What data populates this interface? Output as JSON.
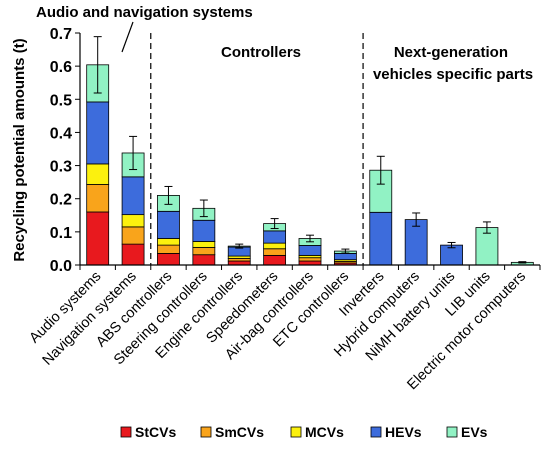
{
  "chart_data": {
    "type": "bar",
    "stacked": true,
    "ylabel": "Recycling potential amounts (t)",
    "ylim": [
      0,
      0.7
    ],
    "yticks": [
      "0.0",
      "0.1",
      "0.2",
      "0.3",
      "0.4",
      "0.5",
      "0.6",
      "0.7"
    ],
    "grid": false,
    "legend_position": "bottom",
    "categories": [
      "Audio systems",
      "Navigation systems",
      "ABS controllers",
      "Steering controllers",
      "Engine controllers",
      "Speedometers",
      "Air-bag controllers",
      "ETC controllers",
      "Inverters",
      "Hybrid computers",
      "NiMH battery units",
      "LIB units",
      "Electric motor computers"
    ],
    "series": [
      {
        "name": "StCVs",
        "color": "#e8191e",
        "values": [
          0.16,
          0.063,
          0.035,
          0.031,
          0.012,
          0.029,
          0.012,
          0.006,
          0,
          0,
          0,
          0,
          0
        ]
      },
      {
        "name": "SmCVs",
        "color": "#f9a41b",
        "values": [
          0.083,
          0.052,
          0.025,
          0.022,
          0.008,
          0.02,
          0.01,
          0.005,
          0,
          0,
          0,
          0,
          0
        ]
      },
      {
        "name": "MCVs",
        "color": "#fcf10e",
        "values": [
          0.062,
          0.037,
          0.02,
          0.018,
          0.007,
          0.017,
          0.007,
          0.005,
          0,
          0,
          0,
          0,
          0
        ]
      },
      {
        "name": "HEVs",
        "color": "#3d6cdc",
        "values": [
          0.187,
          0.114,
          0.082,
          0.064,
          0.027,
          0.037,
          0.03,
          0.019,
          0.159,
          0.137,
          0.06,
          0,
          0
        ]
      },
      {
        "name": "EVs",
        "color": "#91f2c4",
        "values": [
          0.112,
          0.072,
          0.048,
          0.036,
          0.003,
          0.022,
          0.021,
          0.007,
          0.127,
          0,
          0,
          0.113,
          0.008
        ]
      }
    ],
    "error_bars": [
      0.085,
      0.05,
      0.027,
      0.025,
      0.006,
      0.015,
      0.01,
      0.006,
      0.042,
      0.02,
      0.008,
      0.017,
      0.002
    ],
    "group_labels": [
      "Controllers",
      "Next-generation vehicles specific parts"
    ],
    "annotation": "Audio and navigation systems"
  }
}
